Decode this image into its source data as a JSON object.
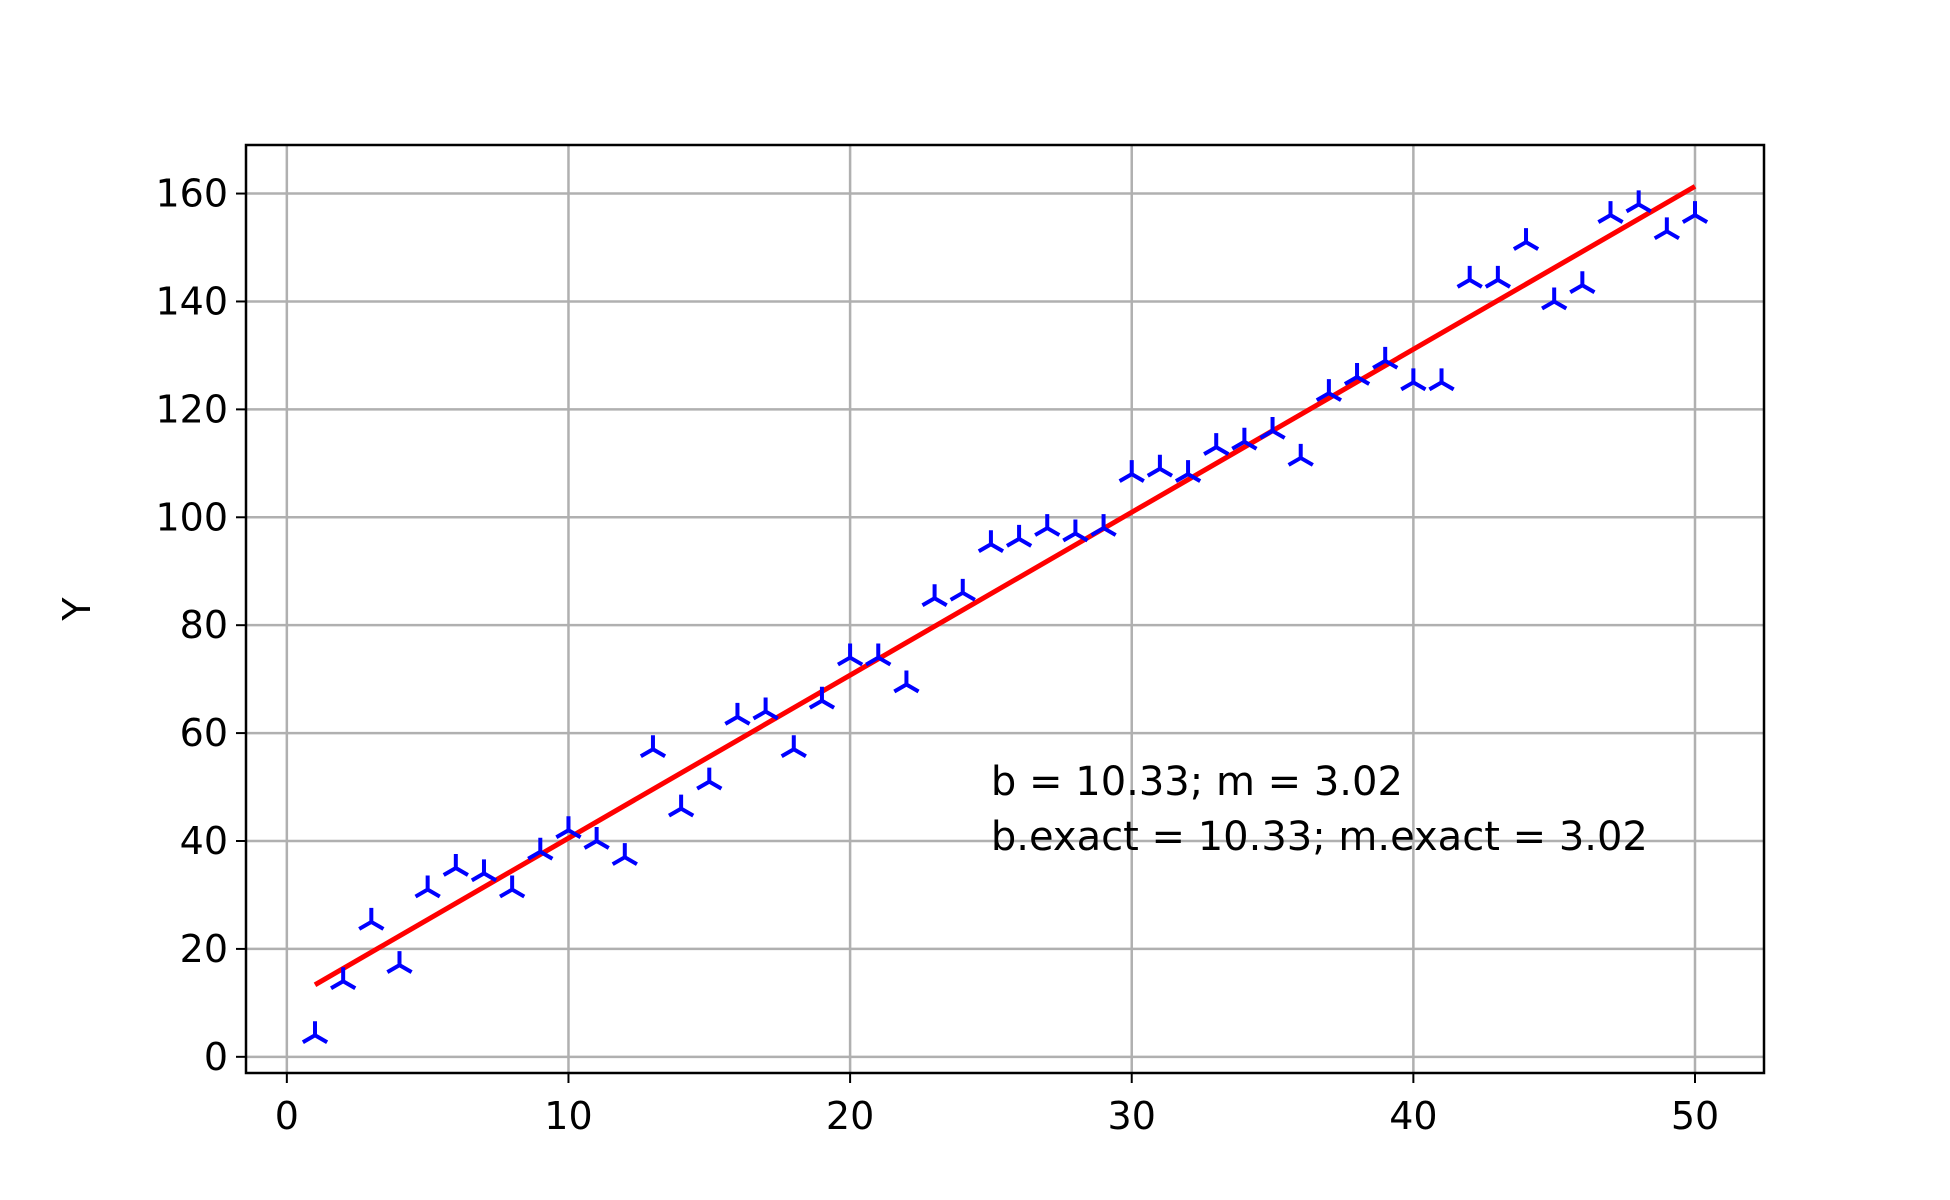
{
  "chart_data": {
    "type": "scatter",
    "title": "",
    "xlabel": "",
    "ylabel": "Y",
    "xlim": [
      -1.45,
      52.45
    ],
    "ylim": [
      -3,
      169
    ],
    "xticks": [
      0,
      10,
      20,
      30,
      40,
      50
    ],
    "yticks": [
      0,
      20,
      40,
      60,
      80,
      100,
      120,
      140,
      160
    ],
    "grid": true,
    "annotation": [
      "b = 10.33; m = 3.02",
      "b.exact = 10.33; m.exact = 3.02"
    ],
    "annotation_anchor": [
      25,
      53
    ],
    "series": [
      {
        "marker": "tri_down",
        "color": "#0000ff",
        "x": [
          1,
          2,
          3,
          4,
          5,
          6,
          7,
          8,
          9,
          10,
          11,
          12,
          13,
          14,
          15,
          16,
          17,
          18,
          19,
          20,
          21,
          22,
          23,
          24,
          25,
          26,
          27,
          28,
          29,
          30,
          31,
          32,
          33,
          34,
          35,
          36,
          37,
          38,
          39,
          40,
          41,
          42,
          43,
          44,
          45,
          46,
          47,
          48,
          49,
          50
        ],
        "y": [
          4,
          14,
          25,
          17,
          31,
          35,
          34,
          31,
          38,
          42,
          40,
          37,
          57,
          46,
          51,
          63,
          64,
          57,
          66,
          74,
          74,
          69,
          85,
          86,
          95,
          96,
          98,
          97,
          98,
          108,
          109,
          108,
          113,
          114,
          116,
          111,
          123,
          126,
          129,
          125,
          125,
          144,
          144,
          151,
          140,
          143,
          156,
          158,
          153,
          156
        ]
      },
      {
        "type": "line",
        "color": "#ff0000",
        "x": [
          1,
          50
        ],
        "y": [
          13.35,
          161.33
        ]
      }
    ]
  }
}
